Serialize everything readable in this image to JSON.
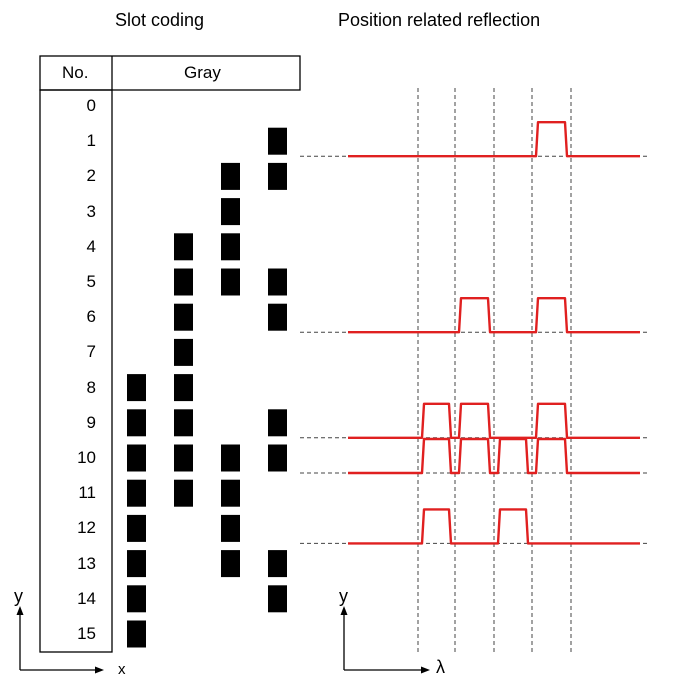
{
  "titles": {
    "left": "Slot coding",
    "right": "Position related reflection"
  },
  "table": {
    "col_no": "No.",
    "col_gray": "Gray",
    "rows": [
      {
        "no": "0",
        "bits": [
          0,
          0,
          0,
          0
        ]
      },
      {
        "no": "1",
        "bits": [
          0,
          0,
          0,
          1
        ]
      },
      {
        "no": "2",
        "bits": [
          0,
          0,
          1,
          1
        ]
      },
      {
        "no": "3",
        "bits": [
          0,
          0,
          1,
          0
        ]
      },
      {
        "no": "4",
        "bits": [
          0,
          1,
          1,
          0
        ]
      },
      {
        "no": "5",
        "bits": [
          0,
          1,
          1,
          1
        ]
      },
      {
        "no": "6",
        "bits": [
          0,
          1,
          0,
          1
        ]
      },
      {
        "no": "7",
        "bits": [
          0,
          1,
          0,
          0
        ]
      },
      {
        "no": "8",
        "bits": [
          1,
          1,
          0,
          0
        ]
      },
      {
        "no": "9",
        "bits": [
          1,
          1,
          0,
          1
        ]
      },
      {
        "no": "10",
        "bits": [
          1,
          1,
          1,
          1
        ]
      },
      {
        "no": "11",
        "bits": [
          1,
          1,
          1,
          0
        ]
      },
      {
        "no": "12",
        "bits": [
          1,
          0,
          1,
          0
        ]
      },
      {
        "no": "13",
        "bits": [
          1,
          0,
          1,
          1
        ]
      },
      {
        "no": "14",
        "bits": [
          1,
          0,
          0,
          1
        ]
      },
      {
        "no": "15",
        "bits": [
          1,
          0,
          0,
          0
        ]
      }
    ]
  },
  "reflection_traces": [
    {
      "row": "1",
      "bits": [
        0,
        0,
        0,
        1
      ]
    },
    {
      "row": "6",
      "bits": [
        0,
        1,
        0,
        1
      ]
    },
    {
      "row": "9",
      "bits": [
        1,
        1,
        0,
        1
      ]
    },
    {
      "row": "10",
      "bits": [
        1,
        1,
        1,
        1
      ]
    },
    {
      "row": "12",
      "bits": [
        1,
        0,
        1,
        0
      ]
    }
  ],
  "axes": {
    "left": {
      "y": "y",
      "x": "x"
    },
    "right": {
      "y": "y",
      "x": "λ"
    }
  },
  "colors": {
    "trace": "#e02020",
    "block": "#000000",
    "dashed": "#444444"
  }
}
